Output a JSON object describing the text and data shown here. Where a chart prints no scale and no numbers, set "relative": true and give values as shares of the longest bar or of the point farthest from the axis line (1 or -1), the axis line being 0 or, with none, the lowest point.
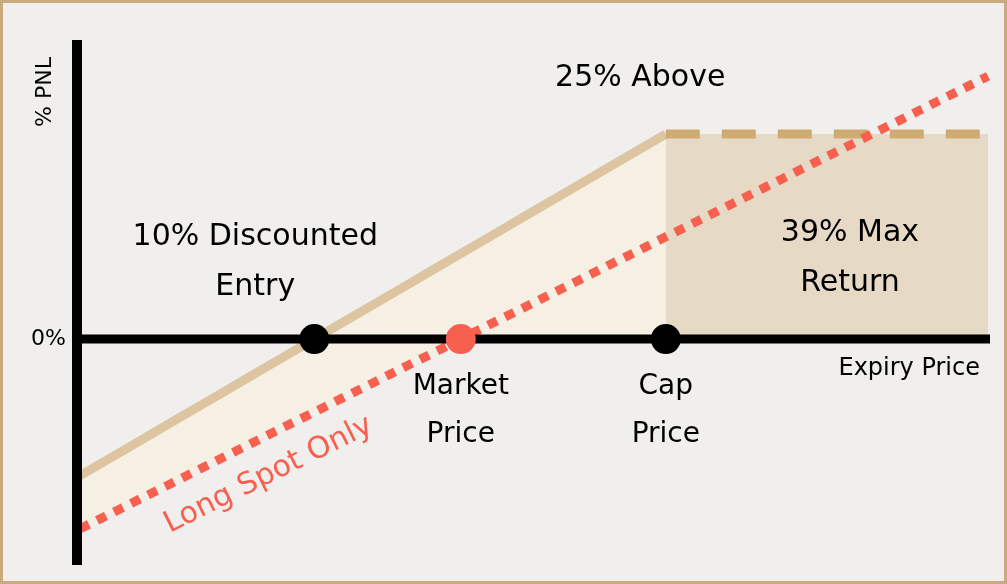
{
  "chart_data": {
    "type": "line",
    "relative": true,
    "xlabel": "Expiry Price",
    "ylabel": "% PNL",
    "categories": [
      null,
      null,
      null,
      null,
      null,
      null,
      null,
      null,
      null,
      null,
      null,
      null,
      null,
      "Market Price",
      null,
      null,
      null,
      null,
      null,
      null,
      "Cap Price",
      null,
      null,
      null,
      null,
      null,
      null,
      null,
      null,
      null,
      null,
      null
    ],
    "series": [
      {
        "type": "line",
        "color": "#dcc5a0",
        "line_style": "solid",
        "values": [
          -0.52,
          -0.455,
          -0.39,
          -0.325,
          -0.26,
          -0.195,
          -0.13,
          -0.065,
          0,
          0.065,
          0.13,
          0.195,
          0.26,
          0.325,
          0.39,
          0.455,
          0.52,
          0.585,
          0.65,
          0.715,
          0.78,
          null,
          null,
          null,
          null,
          null,
          null,
          null,
          null,
          null,
          null,
          null
        ],
        "lower": [
          -0.722,
          -0.667,
          -0.611,
          -0.556,
          -0.5,
          -0.444,
          -0.389,
          -0.333,
          -0.278,
          -0.222,
          -0.167,
          -0.111,
          -0.056,
          0,
          0,
          0,
          0,
          0,
          0,
          0,
          0,
          null,
          null,
          null,
          null,
          null,
          null,
          null,
          null,
          null,
          null,
          null
        ],
        "upper": [
          -0.52,
          -0.455,
          -0.39,
          -0.325,
          -0.26,
          -0.195,
          -0.13,
          -0.065,
          0,
          0.065,
          0.13,
          0.195,
          0.26,
          0.325,
          0.39,
          0.455,
          0.52,
          0.585,
          0.65,
          0.715,
          0.78,
          null,
          null,
          null,
          null,
          null,
          null,
          null,
          null,
          null,
          null,
          null
        ]
      },
      {
        "type": "area",
        "color": "#cfab73",
        "line_style": "dashed",
        "values": [
          null,
          null,
          null,
          null,
          null,
          null,
          null,
          null,
          null,
          null,
          null,
          null,
          null,
          null,
          null,
          null,
          null,
          null,
          null,
          null,
          0.78,
          0.78,
          0.78,
          0.78,
          0.78,
          0.78,
          0.78,
          0.78,
          0.78,
          0.78,
          0.78,
          0.78
        ]
      },
      {
        "type": "line",
        "name": "Long Spot Only",
        "color": "#f7604f",
        "line_style": "dotted",
        "values": [
          -0.722,
          -0.667,
          -0.611,
          -0.556,
          -0.5,
          -0.444,
          -0.389,
          -0.333,
          -0.278,
          -0.222,
          -0.167,
          -0.111,
          -0.056,
          0,
          0.056,
          0.111,
          0.167,
          0.222,
          0.278,
          0.333,
          0.389,
          0.444,
          0.5,
          0.556,
          0.611,
          0.667,
          0.722,
          0.778,
          0.833,
          0.889,
          0.944,
          1
        ]
      },
      {
        "type": "scatter",
        "color": "#000000",
        "marker": "circle",
        "values": [
          null,
          null,
          null,
          null,
          null,
          null,
          null,
          null,
          0,
          null,
          null,
          null,
          null,
          null,
          null,
          null,
          null,
          null,
          null,
          null,
          0,
          null,
          null,
          null,
          null,
          null,
          null,
          null,
          null,
          null,
          null,
          null
        ]
      },
      {
        "type": "scatter",
        "color": "#f7604f",
        "marker": "circle",
        "values": [
          null,
          null,
          null,
          null,
          null,
          null,
          null,
          null,
          null,
          null,
          null,
          null,
          null,
          0,
          null,
          null,
          null,
          null,
          null,
          null,
          null,
          null,
          null,
          null,
          null,
          null,
          null,
          null,
          null,
          null,
          null,
          null
        ]
      }
    ],
    "annotations": [
      "25% Above",
      "10% Discounted Entry",
      "39% Max Return",
      "0%"
    ]
  }
}
